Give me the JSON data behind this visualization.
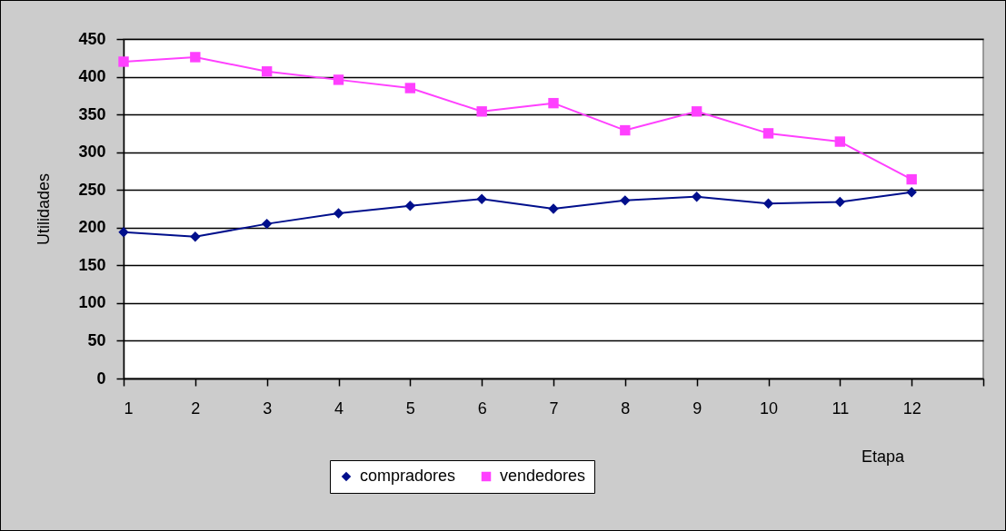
{
  "chart_data": {
    "type": "line",
    "xlabel": "Etapa",
    "ylabel": "Utilidades",
    "x": [
      1,
      2,
      3,
      4,
      5,
      6,
      7,
      8,
      9,
      10,
      11,
      12
    ],
    "series": [
      {
        "name": "compradores",
        "color": "#000f8c",
        "marker": "diamond",
        "values": [
          194,
          188,
          205,
          219,
          229,
          238,
          225,
          236,
          241,
          232,
          234,
          247
        ]
      },
      {
        "name": "vendedores",
        "color": "#ff40ff",
        "marker": "square",
        "values": [
          420,
          426,
          407,
          396,
          385,
          354,
          365,
          329,
          354,
          325,
          314,
          264
        ]
      }
    ],
    "xlim": [
      1,
      13
    ],
    "xticks": [
      1,
      2,
      3,
      4,
      5,
      6,
      7,
      8,
      9,
      10,
      11,
      12,
      {
        "value": 13,
        "label": null
      }
    ],
    "ylim": [
      0,
      450
    ],
    "yticks": [
      0,
      50,
      100,
      150,
      200,
      250,
      300,
      350,
      400,
      450
    ],
    "grid": "y",
    "legend": "bottom",
    "line_style": "solid"
  }
}
